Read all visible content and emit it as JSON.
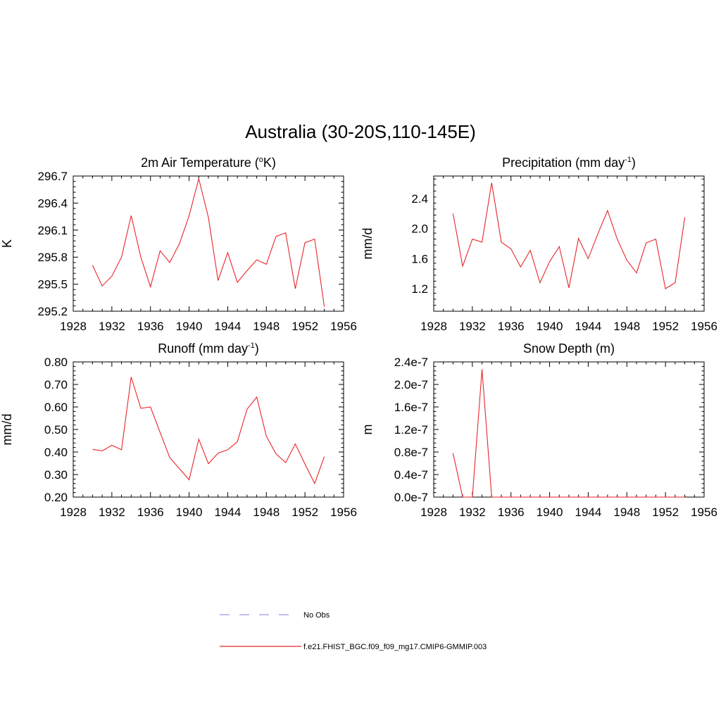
{
  "title": "Australia (30-20S,110-145E)",
  "colors": {
    "model": "#e8262a",
    "obs": "#9999ee",
    "axis": "#000000"
  },
  "legend": {
    "obs_label": "No Obs",
    "model_label": "f.e21.FHIST_BGC.f09_f09_mg17.CMIP6-GMMIP.003"
  },
  "chart_data": [
    {
      "type": "line",
      "title_main": "2m Air Temperature (",
      "title_sup1": "o",
      "title_rest": "K)",
      "ylabel": "K",
      "xlim": [
        1928,
        1956
      ],
      "ylim": [
        295.2,
        296.7
      ],
      "xticks": [
        1928,
        1932,
        1936,
        1940,
        1944,
        1948,
        1952,
        1956
      ],
      "yticks": [
        295.2,
        295.5,
        295.8,
        296.1,
        296.4,
        296.7
      ],
      "ytick_labels": [
        "295.2",
        "295.5",
        "295.8",
        "296.1",
        "296.4",
        "296.7"
      ],
      "series": [
        {
          "x": [
            1930,
            1931,
            1932,
            1933,
            1934,
            1935,
            1936,
            1937,
            1938,
            1939,
            1940,
            1941,
            1942,
            1943,
            1944,
            1945,
            1946,
            1947,
            1948,
            1949,
            1950,
            1951,
            1952,
            1953,
            1954
          ],
          "values": [
            295.71,
            295.48,
            295.59,
            295.8,
            296.26,
            295.8,
            295.47,
            295.87,
            295.74,
            295.95,
            296.26,
            296.67,
            296.24,
            295.54,
            295.85,
            295.52,
            295.65,
            295.77,
            295.72,
            296.03,
            296.07,
            295.45,
            295.96,
            296.0,
            295.25
          ]
        }
      ]
    },
    {
      "type": "line",
      "title_main": "Precipitation (mm day",
      "title_sup1": "-1",
      "title_rest": ")",
      "ylabel": "mm/d",
      "xlim": [
        1928,
        1956
      ],
      "ylim": [
        0.9,
        2.7
      ],
      "xticks": [
        1928,
        1932,
        1936,
        1940,
        1944,
        1948,
        1952,
        1956
      ],
      "yticks": [
        1.2,
        1.6,
        2.0,
        2.4
      ],
      "ytick_labels": [
        "1.2",
        "1.6",
        "2.0",
        "2.4"
      ],
      "series": [
        {
          "x": [
            1930,
            1931,
            1932,
            1933,
            1934,
            1935,
            1936,
            1937,
            1938,
            1939,
            1940,
            1941,
            1942,
            1943,
            1944,
            1945,
            1946,
            1947,
            1948,
            1949,
            1950,
            1951,
            1952,
            1953,
            1954
          ],
          "values": [
            2.2,
            1.5,
            1.86,
            1.82,
            2.61,
            1.82,
            1.73,
            1.49,
            1.71,
            1.28,
            1.56,
            1.76,
            1.21,
            1.87,
            1.6,
            1.93,
            2.24,
            1.86,
            1.58,
            1.41,
            1.81,
            1.86,
            1.2,
            1.28,
            2.15
          ]
        }
      ]
    },
    {
      "type": "line",
      "title_main": "Runoff (mm day",
      "title_sup1": "-1",
      "title_rest": ")",
      "ylabel": "mm/d",
      "xlim": [
        1928,
        1956
      ],
      "ylim": [
        0.2,
        0.8
      ],
      "xticks": [
        1928,
        1932,
        1936,
        1940,
        1944,
        1948,
        1952,
        1956
      ],
      "yticks": [
        0.2,
        0.3,
        0.4,
        0.5,
        0.6,
        0.7,
        0.8
      ],
      "ytick_labels": [
        "0.20",
        "0.30",
        "0.40",
        "0.50",
        "0.60",
        "0.70",
        "0.80"
      ],
      "series": [
        {
          "x": [
            1930,
            1931,
            1932,
            1933,
            1934,
            1935,
            1936,
            1937,
            1938,
            1939,
            1940,
            1941,
            1942,
            1943,
            1944,
            1945,
            1946,
            1947,
            1948,
            1949,
            1950,
            1951,
            1952,
            1953,
            1954
          ],
          "values": [
            0.412,
            0.405,
            0.43,
            0.41,
            0.733,
            0.594,
            0.6,
            0.487,
            0.375,
            0.326,
            0.277,
            0.457,
            0.348,
            0.395,
            0.41,
            0.446,
            0.59,
            0.644,
            0.47,
            0.392,
            0.353,
            0.436,
            0.347,
            0.26,
            0.38
          ]
        }
      ]
    },
    {
      "type": "line",
      "title_main": "Snow Depth (m)",
      "title_sup1": "",
      "title_rest": "",
      "ylabel": "m",
      "xlim": [
        1928,
        1956
      ],
      "ylim": [
        0,
        2.4e-07
      ],
      "xticks": [
        1928,
        1932,
        1936,
        1940,
        1944,
        1948,
        1952,
        1956
      ],
      "yticks": [
        0,
        4e-08,
        8e-08,
        1.2e-07,
        1.6e-07,
        2e-07,
        2.4e-07
      ],
      "ytick_labels": [
        "0.0e-7",
        "0.4e-7",
        "0.8e-7",
        "1.2e-7",
        "1.6e-7",
        "2.0e-7",
        "2.4e-7"
      ],
      "series": [
        {
          "x": [
            1930,
            1931,
            1932,
            1933,
            1934,
            1935,
            1936,
            1937,
            1938,
            1939,
            1940,
            1941,
            1942,
            1943,
            1944,
            1945,
            1946,
            1947,
            1948,
            1949,
            1950,
            1951,
            1952,
            1953,
            1954
          ],
          "values": [
            7.8e-08,
            0,
            0,
            2.27e-07,
            0,
            0,
            0,
            0,
            0,
            0,
            0,
            0,
            0,
            0,
            0,
            0,
            0,
            0,
            0,
            0,
            0,
            0,
            0,
            0,
            0
          ]
        }
      ]
    }
  ]
}
